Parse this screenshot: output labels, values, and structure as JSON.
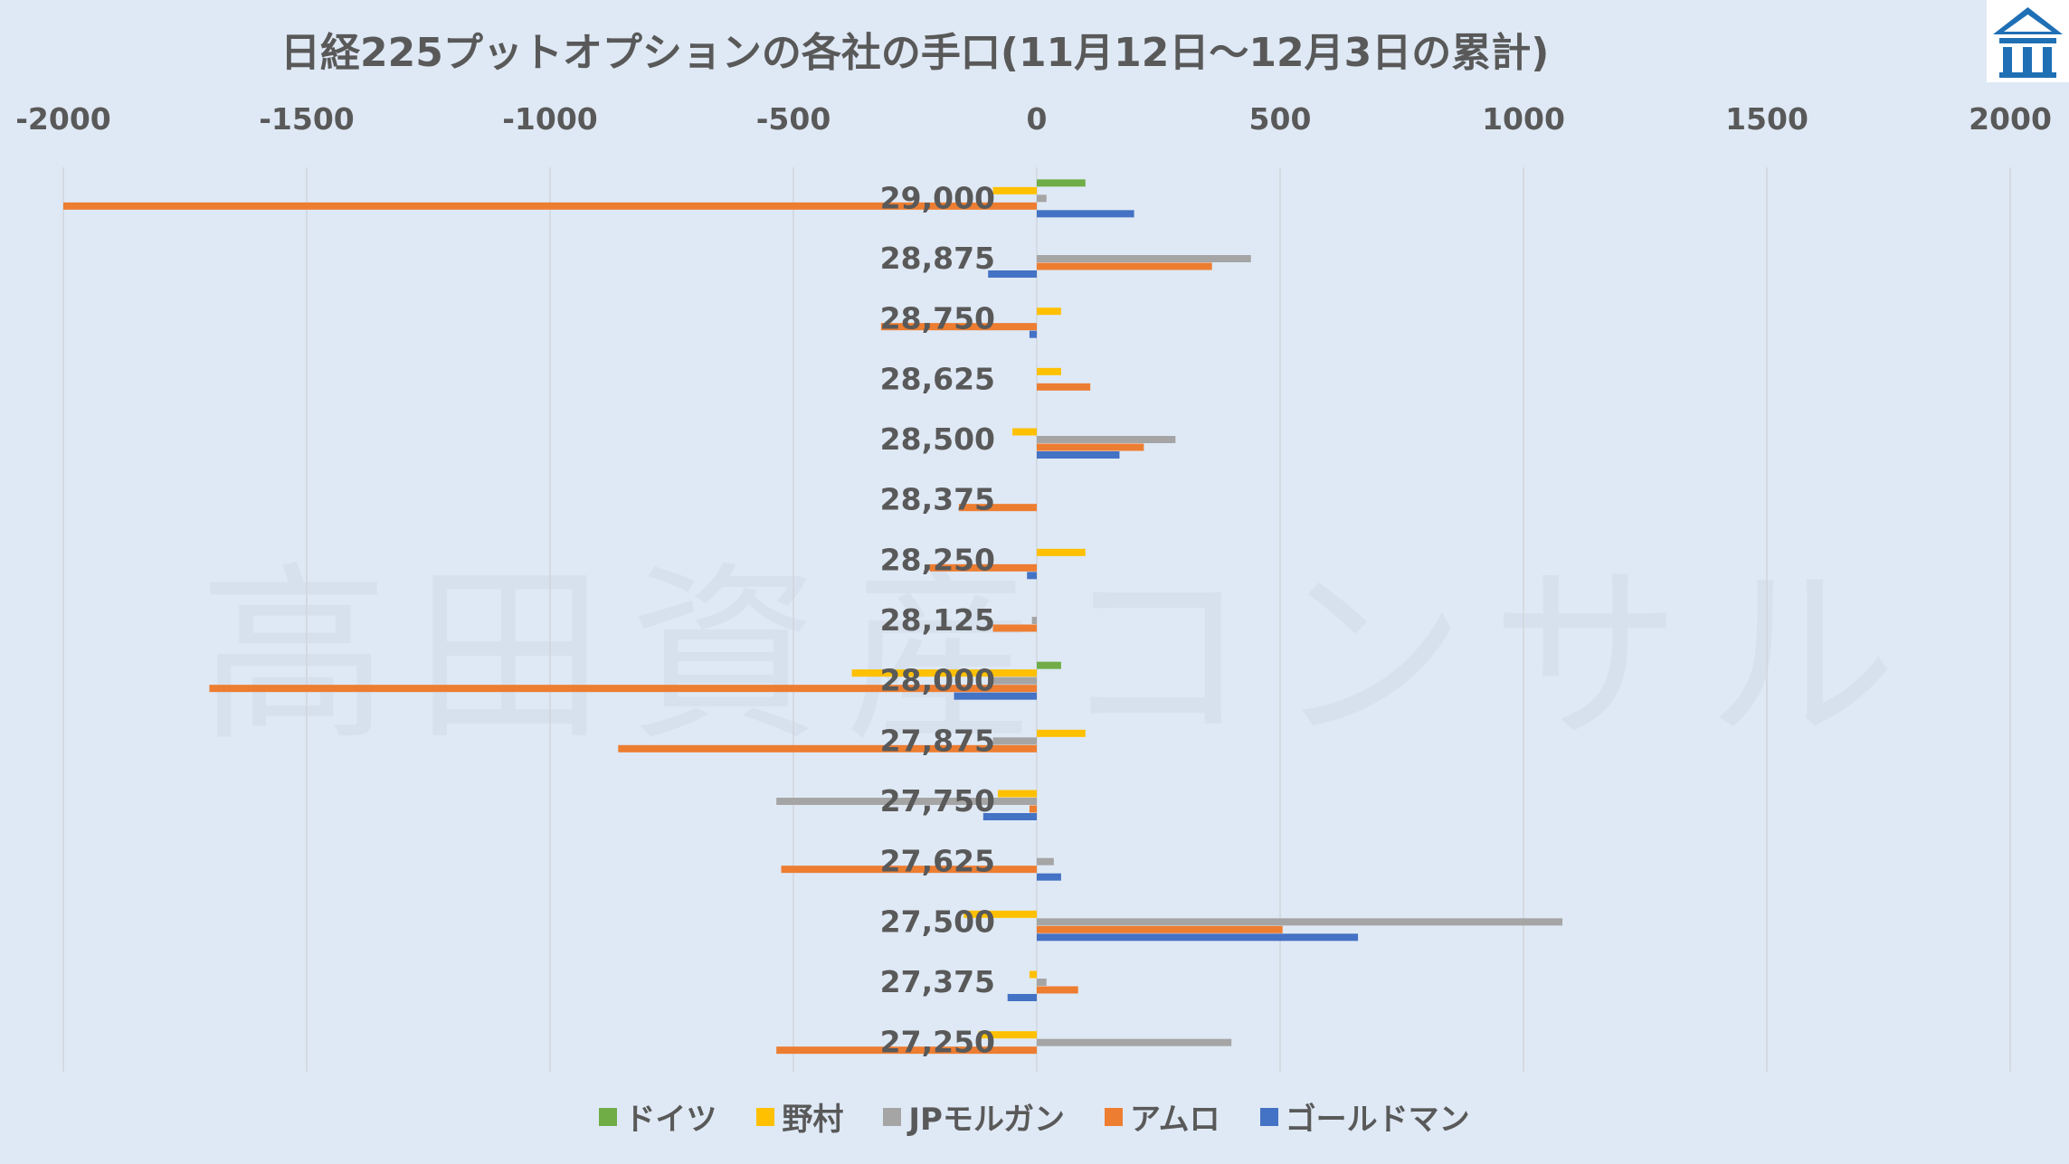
{
  "chart_data": {
    "type": "bar",
    "orientation": "horizontal",
    "title": "日経225プットオプションの各社の手口(11月12日～12月3日の累計)",
    "watermark": "高田資産コンサル",
    "xlim": [
      -2000,
      2000
    ],
    "xticks": [
      "-2000",
      "-1500",
      "-1000",
      "-500",
      "0",
      "500",
      "1000",
      "1500",
      "2000"
    ],
    "xtick_values": [
      -2000,
      -1500,
      -1000,
      -500,
      0,
      500,
      1000,
      1500,
      2000
    ],
    "grid": true,
    "legend_position": "bottom",
    "categories": [
      "29,000",
      "28,875",
      "28,750",
      "28,625",
      "28,500",
      "28,375",
      "28,250",
      "28,125",
      "28,000",
      "27,875",
      "27,750",
      "27,625",
      "27,500",
      "27,375",
      "27,250"
    ],
    "series": [
      {
        "name": "ドイツ",
        "color": "#70ad47",
        "values": [
          100,
          0,
          0,
          0,
          0,
          0,
          0,
          0,
          50,
          0,
          0,
          0,
          0,
          0,
          0
        ]
      },
      {
        "name": "野村",
        "color": "#ffc000",
        "values": [
          -90,
          0,
          50,
          50,
          -50,
          0,
          100,
          0,
          -380,
          100,
          -80,
          0,
          -150,
          -15,
          -120
        ]
      },
      {
        "name": "JPモルガン",
        "color": "#a5a5a5",
        "values": [
          20,
          440,
          0,
          0,
          285,
          0,
          0,
          -10,
          -100,
          -90,
          -535,
          35,
          1080,
          20,
          400
        ]
      },
      {
        "name": "アムロ",
        "color": "#ed7d31",
        "values": [
          -2000,
          360,
          -320,
          110,
          220,
          -160,
          -220,
          -90,
          -1700,
          -860,
          -15,
          -525,
          505,
          85,
          -535
        ]
      },
      {
        "name": "ゴールドマン",
        "color": "#4472c4",
        "values": [
          200,
          -100,
          -15,
          0,
          170,
          0,
          -20,
          0,
          -170,
          0,
          -110,
          50,
          660,
          -60,
          0
        ]
      }
    ]
  },
  "logo": {
    "name": "takada-logo-icon",
    "color": "#1f6fb5"
  }
}
